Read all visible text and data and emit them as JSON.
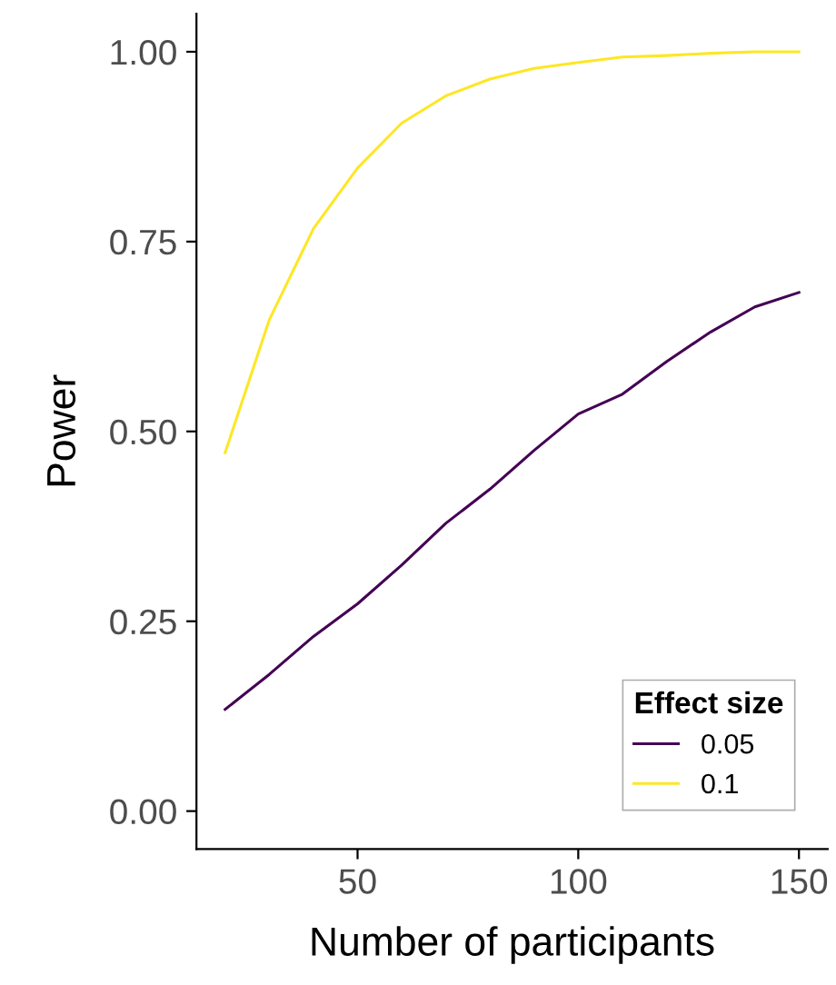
{
  "chart_data": {
    "type": "line",
    "xlabel": "Number of participants",
    "ylabel": "Power",
    "legend_title": "Effect size",
    "x": [
      20,
      30,
      40,
      50,
      60,
      70,
      80,
      90,
      100,
      110,
      120,
      130,
      140,
      150
    ],
    "series": [
      {
        "name": "0.05",
        "color": "#440154",
        "values": [
          0.134,
          0.18,
          0.23,
          0.273,
          0.324,
          0.379,
          0.424,
          0.475,
          0.523,
          0.549,
          0.592,
          0.631,
          0.664,
          0.683
        ]
      },
      {
        "name": "0.1",
        "color": "#fde725",
        "values": [
          0.472,
          0.647,
          0.767,
          0.847,
          0.906,
          0.942,
          0.964,
          0.978,
          0.986,
          0.993,
          0.995,
          0.998,
          1.0,
          1.0
        ]
      }
    ],
    "xlim": [
      13.5,
      156.5
    ],
    "ylim": [
      -0.05,
      1.05
    ],
    "xticks": [
      50,
      100,
      150
    ],
    "yticks": [
      {
        "value": 0,
        "label": "0.00"
      },
      {
        "value": 0.25,
        "label": "0.25"
      },
      {
        "value": 0.5,
        "label": "0.50"
      },
      {
        "value": 0.75,
        "label": "0.75"
      },
      {
        "value": 1,
        "label": "1.00"
      }
    ],
    "grid": false,
    "legend": "bottom right",
    "marker": "none",
    "line_style": "solid"
  }
}
